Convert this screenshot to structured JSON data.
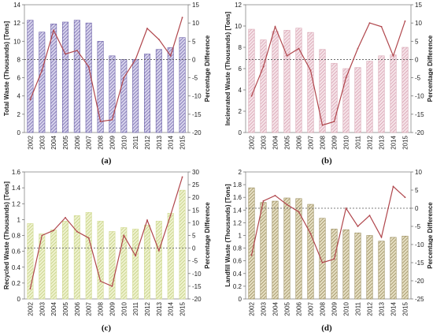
{
  "chart_data": [
    {
      "type": "bar",
      "panel_label": "(a)",
      "ylabel": "Total Waste (Thousands) [Tons]",
      "y2label": "Percentage Difference",
      "categories": [
        "2002",
        "2003",
        "2004",
        "2005",
        "2006",
        "2007",
        "2008",
        "2009",
        "2010",
        "2011",
        "2012",
        "2013",
        "2014",
        "2015"
      ],
      "ylim": [
        0,
        14
      ],
      "yticks": [
        0,
        2,
        4,
        6,
        8,
        10,
        12,
        14
      ],
      "y2lim": [
        -20,
        15
      ],
      "y2ticks": [
        -20,
        -15,
        -10,
        -5,
        0,
        5,
        10,
        15
      ],
      "bar_values": [
        12.3,
        11.0,
        11.9,
        12.1,
        12.3,
        12.0,
        10.0,
        8.4,
        8.0,
        8.0,
        8.6,
        9.1,
        9.3,
        10.4
      ],
      "line_values": [
        -11,
        -3,
        8,
        1.5,
        2.5,
        -2,
        -17,
        -16.5,
        -5,
        0,
        8.5,
        5.5,
        1,
        11.5
      ],
      "reference_line_y2": 0,
      "bar_color": "#6b5fa8",
      "line_color": "#b0464c"
    },
    {
      "type": "bar",
      "panel_label": "(b)",
      "ylabel": "Incinerated Waste (Thousands) [Tons]",
      "y2label": "Percentage Difference",
      "categories": [
        "2002",
        "2003",
        "2004",
        "2005",
        "2006",
        "2007",
        "2008",
        "2009",
        "2010",
        "2011",
        "2012",
        "2013",
        "2014",
        "2015"
      ],
      "ylim": [
        0,
        12
      ],
      "yticks": [
        0,
        2,
        4,
        6,
        8,
        10,
        12
      ],
      "y2lim": [
        -20,
        15
      ],
      "y2ticks": [
        -20,
        -15,
        -10,
        -5,
        0,
        5,
        10,
        15
      ],
      "bar_values": [
        9.7,
        8.7,
        9.5,
        9.6,
        9.8,
        9.4,
        7.8,
        6.5,
        6.0,
        6.1,
        6.7,
        7.2,
        7.3,
        8.0
      ],
      "line_values": [
        -10,
        -2,
        9,
        1,
        3,
        -3,
        -18,
        -17,
        -5,
        3,
        10,
        9,
        1,
        10.5
      ],
      "reference_line_y2": 0,
      "bar_color": "#d9a6b3",
      "line_color": "#b0464c"
    },
    {
      "type": "bar",
      "panel_label": "(c)",
      "ylabel": "Recycled Waste (Thousands) [Tons]",
      "y2label": "Percentage Difference",
      "categories": [
        "2002",
        "2003",
        "2004",
        "2005",
        "2006",
        "2007",
        "2008",
        "2009",
        "2010",
        "2011",
        "2012",
        "2013",
        "2014",
        "2015"
      ],
      "ylim": [
        0,
        1.6
      ],
      "yticks": [
        0,
        0.2,
        0.4,
        0.6,
        0.8,
        1,
        1.2,
        1.4,
        1.6
      ],
      "y2lim": [
        -20,
        30
      ],
      "y2ticks": [
        -20,
        -15,
        -10,
        -5,
        0,
        5,
        10,
        15,
        20,
        25,
        30
      ],
      "bar_values": [
        0.95,
        0.82,
        0.87,
        0.98,
        1.05,
        1.09,
        0.98,
        0.85,
        0.9,
        0.88,
        0.93,
        0.98,
        1.08,
        1.37
      ],
      "line_values": [
        -16,
        5,
        7,
        12,
        6.5,
        4,
        -13,
        -15,
        5,
        -3,
        11,
        -1,
        13,
        28
      ],
      "reference_line_y2": 0,
      "bar_color": "#d3dc94",
      "line_color": "#b0464c"
    },
    {
      "type": "bar",
      "panel_label": "(d)",
      "ylabel": "Landfill Waste (Thousands) [Tons]",
      "y2label": "Percentage Difference",
      "categories": [
        "2002",
        "2003",
        "2004",
        "2005",
        "2006",
        "2007",
        "2008",
        "2009",
        "2010",
        "2011",
        "2012",
        "2013",
        "2014",
        "2015"
      ],
      "ylim": [
        0,
        2
      ],
      "yticks": [
        0,
        0.2,
        0.4,
        0.6,
        0.8,
        1,
        1.2,
        1.4,
        1.6,
        1.8,
        2
      ],
      "y2lim": [
        -25,
        10
      ],
      "y2ticks": [
        -25,
        -20,
        -15,
        -10,
        -5,
        0,
        5,
        10
      ],
      "bar_values": [
        1.75,
        1.52,
        1.54,
        1.59,
        1.58,
        1.49,
        1.27,
        1.1,
        1.09,
        1.04,
        1.0,
        0.91,
        0.97,
        0.99
      ],
      "line_values": [
        -13,
        2,
        3.5,
        1,
        -1,
        -7,
        -15,
        -14,
        0,
        -5,
        -2,
        -8,
        6,
        3
      ],
      "reference_line_y2": 0,
      "bar_color": "#9a8e5e",
      "line_color": "#b0464c"
    }
  ]
}
